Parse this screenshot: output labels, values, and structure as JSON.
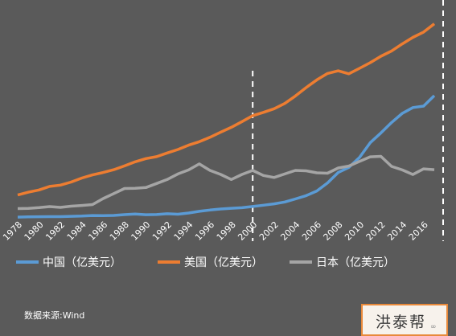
{
  "chart_data": {
    "type": "line",
    "title": "",
    "xlabel": "",
    "ylabel": "",
    "x": [
      1978,
      1979,
      1980,
      1981,
      1982,
      1983,
      1984,
      1985,
      1986,
      1987,
      1988,
      1989,
      1990,
      1991,
      1992,
      1993,
      1994,
      1995,
      1996,
      1997,
      1998,
      1999,
      2000,
      2001,
      2002,
      2003,
      2004,
      2005,
      2006,
      2007,
      2008,
      2009,
      2010,
      2011,
      2012,
      2013,
      2014,
      2015,
      2016,
      2017
    ],
    "x_tick_labels": [
      "1978",
      "1980",
      "1982",
      "1984",
      "1986",
      "1988",
      "1990",
      "1992",
      "1994",
      "1996",
      "1998",
      "2000",
      "2002",
      "2004",
      "2006",
      "2008",
      "2010",
      "2012",
      "2014",
      "2016"
    ],
    "ylim": [
      0,
      20
    ],
    "reference_line_x": 2000,
    "grid": false,
    "legend_position": "bottom",
    "series": [
      {
        "name": "中国（亿美元）",
        "color": "#5b9bd5",
        "values": [
          0.15,
          0.18,
          0.19,
          0.2,
          0.2,
          0.23,
          0.26,
          0.31,
          0.3,
          0.32,
          0.4,
          0.46,
          0.39,
          0.41,
          0.49,
          0.44,
          0.56,
          0.73,
          0.86,
          0.96,
          1.03,
          1.09,
          1.21,
          1.34,
          1.47,
          1.66,
          1.96,
          2.29,
          2.75,
          3.55,
          4.59,
          5.1,
          6.09,
          7.55,
          8.53,
          9.57,
          10.48,
          11.06,
          11.2,
          12.24
        ]
      },
      {
        "name": "美国（亿美元）",
        "color": "#ed7d31",
        "values": [
          2.35,
          2.63,
          2.86,
          3.21,
          3.34,
          3.64,
          4.04,
          4.35,
          4.59,
          4.87,
          5.25,
          5.66,
          5.98,
          6.17,
          6.54,
          6.88,
          7.31,
          7.66,
          8.1,
          8.61,
          9.09,
          9.66,
          10.25,
          10.58,
          10.94,
          11.46,
          12.21,
          13.04,
          13.81,
          14.45,
          14.71,
          14.42,
          14.96,
          15.52,
          16.16,
          16.69,
          17.39,
          18.04,
          18.57,
          19.39
        ]
      },
      {
        "name": "日本（亿美元）",
        "color": "#a5a5a5",
        "values": [
          1.0,
          1.02,
          1.1,
          1.2,
          1.12,
          1.24,
          1.31,
          1.4,
          2.0,
          2.5,
          3.0,
          3.02,
          3.1,
          3.5,
          3.9,
          4.45,
          4.85,
          5.45,
          4.8,
          4.4,
          3.9,
          4.4,
          4.8,
          4.3,
          4.1,
          4.45,
          4.8,
          4.76,
          4.56,
          4.52,
          5.04,
          5.23,
          5.7,
          6.15,
          6.2,
          5.2,
          4.85,
          4.39,
          4.95,
          4.87
        ]
      }
    ]
  },
  "source_text": "数据来源:Wind",
  "brand_text": "洪泰帮",
  "brand_mark": "∞"
}
